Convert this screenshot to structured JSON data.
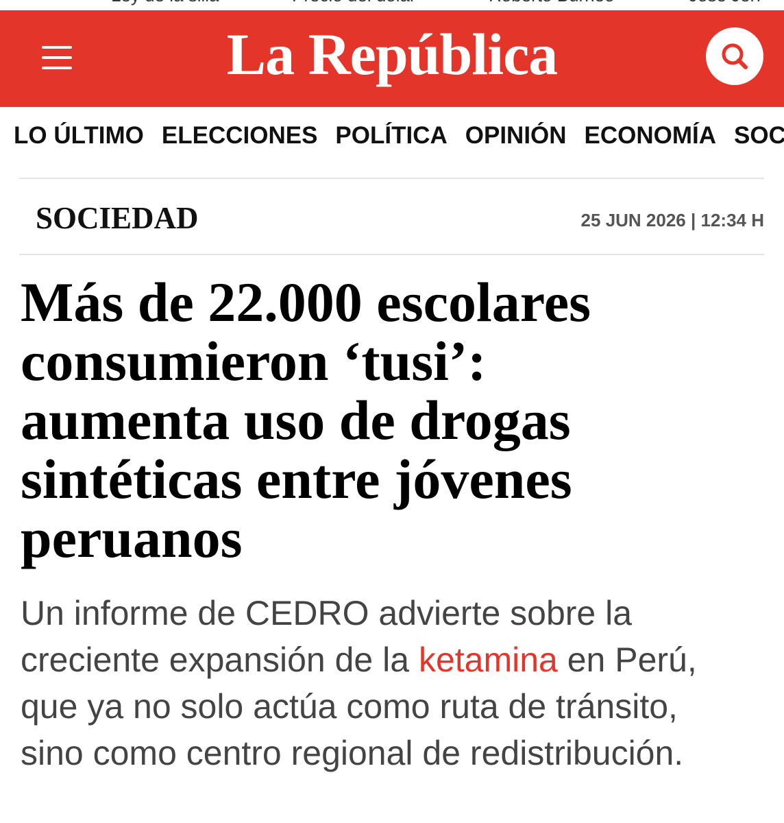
{
  "top_links": [
    "Ley de la silla",
    "Precio del dólar",
    "Roberto Burneo",
    "José Jerí"
  ],
  "header": {
    "brand": "La República"
  },
  "nav": [
    "LO ÚLTIMO",
    "ELECCIONES",
    "POLÍTICA",
    "OPINIÓN",
    "ECONOMÍA",
    "SOCIEDAD"
  ],
  "article": {
    "section": "SOCIEDAD",
    "date": "25 JUN 2026 | 12:34 H",
    "headline": "Más de 22.000 escolares consumieron ‘tusi’: aumenta uso de drogas sintéticas entre jóvenes peruanos",
    "summary_before": "Un informe de CEDRO advierte sobre la creciente expansión de la ",
    "summary_link": "ketamina",
    "summary_after": " en Perú, que ya no solo actúa como ruta de tránsito, sino como centro regional de redistribución."
  }
}
